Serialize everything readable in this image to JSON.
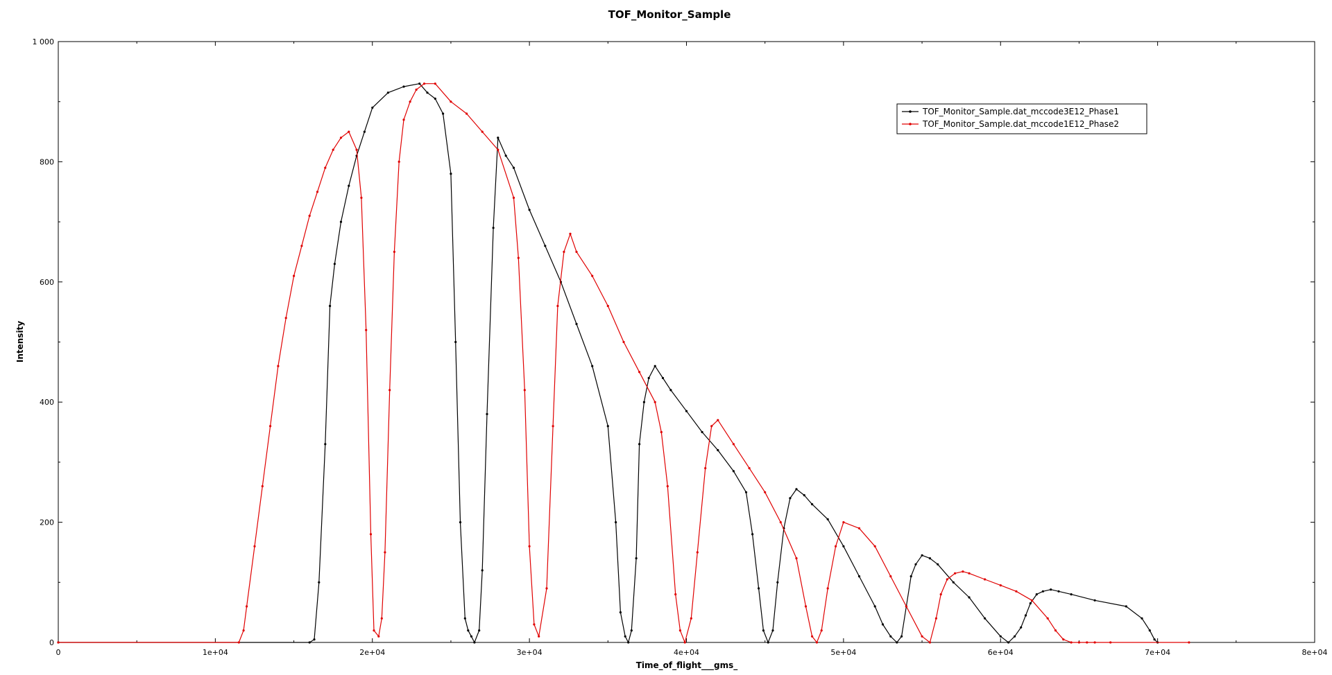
{
  "chart_data": {
    "type": "line",
    "title": "TOF_Monitor_Sample",
    "xlabel": "Time_of_flight___gms_",
    "ylabel": "Intensity",
    "xlim": [
      0,
      80000
    ],
    "ylim": [
      0,
      1000
    ],
    "x_ticks": [
      0,
      10000,
      20000,
      30000,
      40000,
      50000,
      60000,
      70000,
      80000
    ],
    "x_tick_labels": [
      "0",
      "1e+04",
      "2e+04",
      "3e+04",
      "4e+04",
      "5e+04",
      "6e+04",
      "7e+04",
      "8e+04"
    ],
    "y_ticks": [
      0,
      200,
      400,
      600,
      800,
      1000
    ],
    "y_tick_labels": [
      "0",
      "200",
      "400",
      "600",
      "800",
      "1 000"
    ],
    "grid": false,
    "legend_position": "top-right",
    "series": [
      {
        "name": "TOF_Monitor_Sample.dat_mccode3E12_Phase1",
        "color": "#000000",
        "x": [
          0,
          16000,
          16300,
          16600,
          17000,
          17300,
          17600,
          18000,
          18500,
          19000,
          19500,
          20000,
          21000,
          22000,
          23000,
          23500,
          24000,
          24500,
          25000,
          25300,
          25600,
          25900,
          26100,
          26300,
          26500,
          26800,
          27000,
          27300,
          27700,
          28000,
          28500,
          29000,
          30000,
          31000,
          32000,
          33000,
          34000,
          35000,
          35500,
          35800,
          36100,
          36300,
          36500,
          36800,
          37000,
          37300,
          37600,
          38000,
          38500,
          39000,
          40000,
          41000,
          42000,
          43000,
          43800,
          44200,
          44600,
          44900,
          45200,
          45500,
          45800,
          46200,
          46600,
          47000,
          47500,
          48000,
          49000,
          50000,
          51000,
          52000,
          52500,
          53000,
          53400,
          53700,
          54000,
          54300,
          54600,
          55000,
          55500,
          56000,
          57000,
          58000,
          59000,
          60000,
          60500,
          60900,
          61300,
          61600,
          61900,
          62300,
          62700,
          63200,
          63700,
          64500,
          66000,
          68000,
          69000,
          69500,
          69800,
          70000
        ],
        "y": [
          0,
          0,
          5,
          100,
          330,
          560,
          630,
          700,
          760,
          810,
          850,
          890,
          915,
          925,
          930,
          915,
          905,
          880,
          780,
          500,
          200,
          40,
          20,
          10,
          0,
          20,
          120,
          380,
          690,
          840,
          810,
          790,
          720,
          660,
          600,
          530,
          460,
          360,
          200,
          50,
          10,
          0,
          20,
          140,
          330,
          400,
          440,
          460,
          440,
          420,
          385,
          350,
          320,
          285,
          250,
          180,
          90,
          20,
          0,
          20,
          100,
          190,
          240,
          255,
          245,
          230,
          205,
          160,
          110,
          60,
          30,
          10,
          0,
          10,
          60,
          110,
          130,
          145,
          140,
          130,
          100,
          75,
          40,
          10,
          0,
          10,
          25,
          45,
          65,
          80,
          85,
          88,
          85,
          80,
          70,
          60,
          40,
          20,
          5,
          0
        ]
      },
      {
        "name": "TOF_Monitor_Sample.dat_mccode1E12_Phase2",
        "color": "#e00000",
        "x": [
          0,
          11500,
          11800,
          12000,
          12500,
          13000,
          13500,
          14000,
          14500,
          15000,
          15500,
          16000,
          16500,
          17000,
          17500,
          18000,
          18500,
          19000,
          19300,
          19600,
          19900,
          20100,
          20400,
          20600,
          20800,
          21100,
          21400,
          21700,
          22000,
          22400,
          22800,
          23300,
          24000,
          25000,
          26000,
          27000,
          28000,
          29000,
          29300,
          29700,
          30000,
          30300,
          30600,
          31100,
          31500,
          31800,
          32200,
          32600,
          33000,
          34000,
          35000,
          36000,
          37000,
          38000,
          38400,
          38800,
          39300,
          39600,
          39900,
          40300,
          40700,
          41200,
          41600,
          42000,
          43000,
          44000,
          45000,
          46000,
          47000,
          47600,
          48000,
          48300,
          48600,
          49000,
          49500,
          50000,
          51000,
          52000,
          53000,
          54000,
          55000,
          55500,
          55900,
          56200,
          56600,
          57100,
          57600,
          58000,
          59000,
          60000,
          61000,
          62000,
          63000,
          63500,
          64000,
          64500,
          65000,
          65500,
          66000,
          67000,
          72000
        ],
        "y": [
          0,
          0,
          20,
          60,
          160,
          260,
          360,
          460,
          540,
          610,
          660,
          710,
          750,
          790,
          820,
          840,
          850,
          820,
          740,
          520,
          180,
          20,
          10,
          40,
          150,
          420,
          650,
          800,
          870,
          900,
          920,
          930,
          930,
          900,
          880,
          850,
          820,
          740,
          640,
          420,
          160,
          30,
          10,
          90,
          360,
          560,
          650,
          680,
          650,
          610,
          560,
          500,
          450,
          400,
          350,
          260,
          80,
          20,
          0,
          40,
          150,
          290,
          360,
          370,
          330,
          290,
          250,
          200,
          140,
          60,
          10,
          0,
          20,
          90,
          160,
          200,
          190,
          160,
          110,
          60,
          10,
          0,
          40,
          80,
          105,
          115,
          118,
          115,
          105,
          95,
          85,
          70,
          40,
          20,
          5,
          0,
          0,
          0,
          0,
          0,
          0
        ]
      }
    ]
  }
}
